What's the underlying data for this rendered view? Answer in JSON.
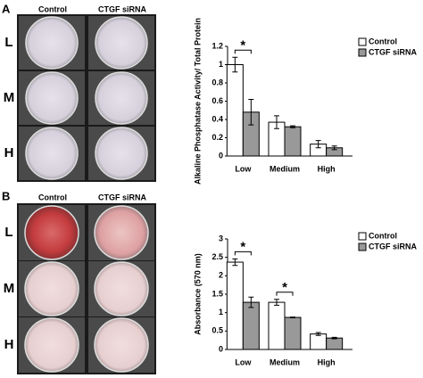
{
  "figure": {
    "panels": [
      {
        "label": "A",
        "columns": [
          "Control",
          "CTGF siRNA"
        ],
        "rows": [
          "L",
          "M",
          "H"
        ]
      },
      {
        "label": "B",
        "columns": [
          "Control",
          "CTGF siRNA"
        ],
        "rows": [
          "L",
          "M",
          "H"
        ]
      }
    ]
  },
  "chart_data": [
    {
      "type": "bar",
      "y_label": "Alkaline Phosphatase Activity/ Total Protein",
      "categories": [
        "Low",
        "Medium",
        "High"
      ],
      "series": [
        {
          "name": "Control",
          "color": "#ffffff",
          "values": [
            1.0,
            0.37,
            0.13
          ],
          "errors": [
            0.08,
            0.07,
            0.04
          ]
        },
        {
          "name": "CTGF siRNA",
          "color": "#999999",
          "values": [
            0.48,
            0.32,
            0.09
          ],
          "errors": [
            0.14,
            0.01,
            0.02
          ]
        }
      ],
      "ylim": [
        0,
        1.2
      ],
      "yticks": [
        0,
        0.2,
        0.4,
        0.6,
        0.8,
        1,
        1.2
      ],
      "legend": "upper right",
      "annotations": [
        {
          "text": "*",
          "category": "Low"
        }
      ]
    },
    {
      "type": "bar",
      "y_label": "Absorbance (570 nm)",
      "categories": [
        "Low",
        "Medium",
        "High"
      ],
      "series": [
        {
          "name": "Control",
          "color": "#ffffff",
          "values": [
            2.37,
            1.28,
            0.42
          ],
          "errors": [
            0.09,
            0.08,
            0.04
          ]
        },
        {
          "name": "CTGF siRNA",
          "color": "#999999",
          "values": [
            1.28,
            0.87,
            0.31
          ],
          "errors": [
            0.14,
            0.01,
            0.02
          ]
        }
      ],
      "ylim": [
        0,
        3
      ],
      "yticks": [
        0,
        0.5,
        1,
        1.5,
        2,
        2.5,
        3
      ],
      "legend": "upper right",
      "annotations": [
        {
          "text": "*",
          "category": "Low"
        },
        {
          "text": "*",
          "category": "Medium"
        }
      ]
    }
  ]
}
